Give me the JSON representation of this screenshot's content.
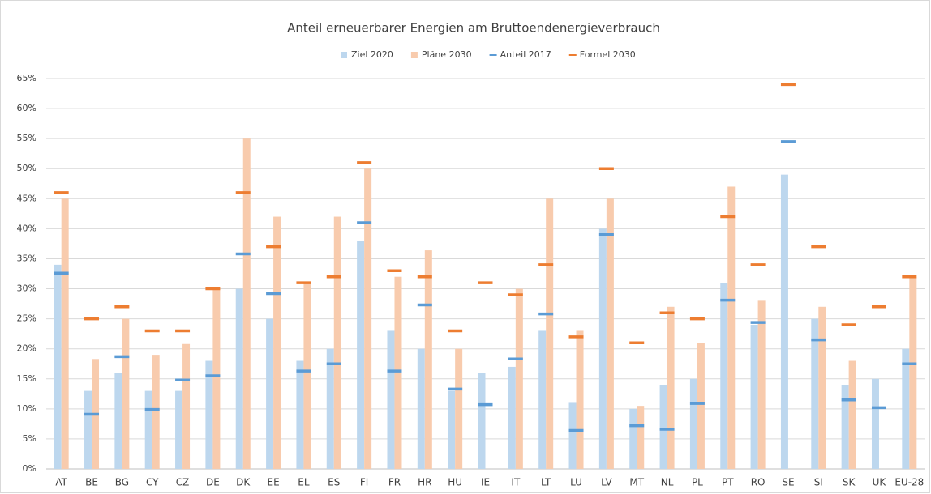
{
  "chart_data": {
    "type": "bar",
    "title": "Anteil erneuerbarer Energien am Bruttoendenergieverbrauch",
    "categories": [
      "AT",
      "BE",
      "BG",
      "CY",
      "CZ",
      "DE",
      "DK",
      "EE",
      "EL",
      "ES",
      "FI",
      "FR",
      "HR",
      "HU",
      "IE",
      "IT",
      "LT",
      "LU",
      "LV",
      "MT",
      "NL",
      "PL",
      "PT",
      "RO",
      "SE",
      "SI",
      "SK",
      "UK",
      "EU-28"
    ],
    "series": [
      {
        "name": "Ziel 2020",
        "color": "#bdd7ee",
        "style": "bar",
        "values": [
          34,
          13,
          16,
          13,
          13,
          18,
          30,
          25,
          18,
          20,
          38,
          23,
          20,
          13,
          16,
          17,
          23,
          11,
          40,
          10,
          14,
          15,
          31,
          24,
          49,
          25,
          14,
          15,
          20
        ]
      },
      {
        "name": "Pläne 2030",
        "color": "#f8cbad",
        "style": "bar",
        "values": [
          45,
          18.3,
          25,
          19,
          20.8,
          30,
          55,
          42,
          31,
          42,
          50,
          32,
          36.4,
          20,
          null,
          30,
          45,
          23,
          45,
          10.5,
          27,
          21,
          47,
          28,
          null,
          27,
          18,
          null,
          32
        ]
      },
      {
        "name": "Anteil 2017",
        "color": "#5b9bd5",
        "style": "dash",
        "values": [
          32.6,
          9.1,
          18.7,
          9.9,
          14.8,
          15.5,
          35.8,
          29.2,
          16.3,
          17.5,
          41,
          16.3,
          27.3,
          13.3,
          10.7,
          18.3,
          25.8,
          6.4,
          39,
          7.2,
          6.6,
          10.9,
          28.1,
          24.4,
          54.5,
          21.5,
          11.5,
          10.2,
          17.5
        ]
      },
      {
        "name": "Formel 2030",
        "color": "#ed7d31",
        "style": "dash",
        "values": [
          46,
          25,
          27,
          23,
          23,
          30,
          46,
          37,
          31,
          32,
          51,
          33,
          32,
          23,
          31,
          29,
          34,
          22,
          50,
          21,
          26,
          25,
          42,
          34,
          64,
          37,
          24,
          27,
          32
        ]
      }
    ],
    "ylim": [
      0,
      65
    ],
    "yticks": [
      {
        "value": 0,
        "label": "0%"
      },
      {
        "value": 5,
        "label": "5%"
      },
      {
        "value": 10,
        "label": "10%"
      },
      {
        "value": 15,
        "label": "15%"
      },
      {
        "value": 20,
        "label": "20%"
      },
      {
        "value": 25,
        "label": "25%"
      },
      {
        "value": 30,
        "label": "30%"
      },
      {
        "value": 35,
        "label": "35%"
      },
      {
        "value": 40,
        "label": "40%"
      },
      {
        "value": 45,
        "label": "45%"
      },
      {
        "value": 50,
        "label": "50%"
      },
      {
        "value": 55,
        "label": "55%"
      },
      {
        "value": 60,
        "label": "60%"
      },
      {
        "value": 65,
        "label": "65%"
      }
    ],
    "grid": true,
    "legend": "top"
  }
}
